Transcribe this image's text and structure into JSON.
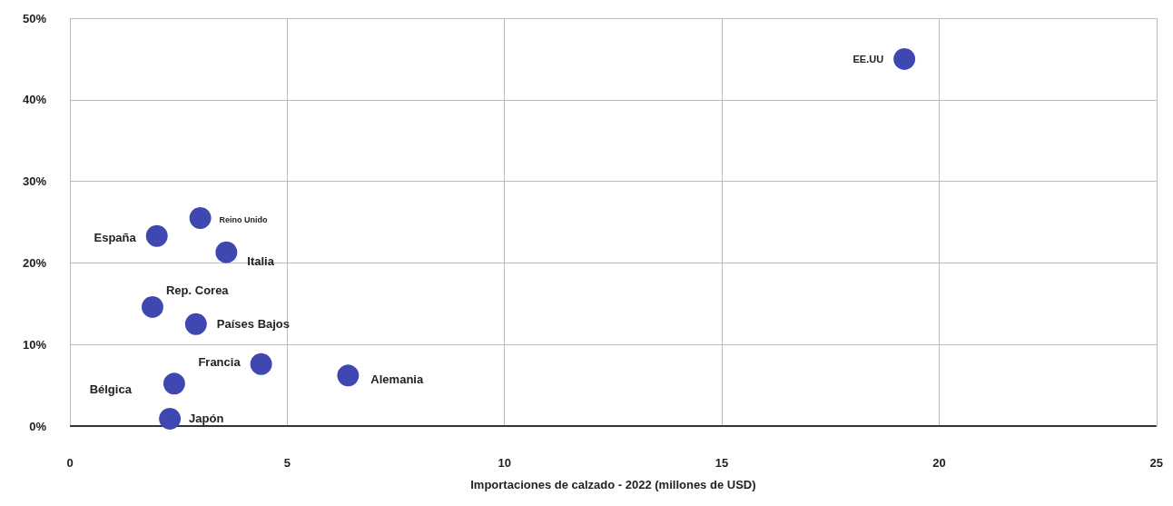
{
  "chart_data": {
    "type": "scatter",
    "xlabel": "Importaciones de calzado - 2022 (millones de USD)",
    "xlim": [
      0,
      25
    ],
    "xticks": [
      0,
      5,
      10,
      15,
      20,
      25
    ],
    "ylim": [
      0,
      50
    ],
    "yticks": [
      {
        "value": 0,
        "label": "0%"
      },
      {
        "value": 10,
        "label": "10%"
      },
      {
        "value": 20,
        "label": "20%"
      },
      {
        "value": 30,
        "label": "30%"
      },
      {
        "value": 40,
        "label": "40%"
      },
      {
        "value": 50,
        "label": "50%"
      }
    ],
    "grid": true,
    "marker": "circle",
    "series": [
      {
        "name": "EE.UU",
        "color": "#3f48b0",
        "x": [
          19.2
        ],
        "values": [
          45.0
        ]
      },
      {
        "name": "Reino Unido",
        "color": "#3f48b0",
        "x": [
          3.0
        ],
        "values": [
          25.5
        ]
      },
      {
        "name": "España",
        "color": "#3f48b0",
        "x": [
          2.0
        ],
        "values": [
          23.3
        ]
      },
      {
        "name": "Italia",
        "color": "#3f48b0",
        "x": [
          3.6
        ],
        "values": [
          21.3
        ]
      },
      {
        "name": "Rep. Corea",
        "color": "#3f48b0",
        "x": [
          1.9
        ],
        "values": [
          14.6
        ]
      },
      {
        "name": "Países Bajos",
        "color": "#3f48b0",
        "x": [
          2.9
        ],
        "values": [
          12.5
        ]
      },
      {
        "name": "Francia",
        "color": "#3f48b0",
        "x": [
          4.4
        ],
        "values": [
          7.6
        ]
      },
      {
        "name": "Alemania",
        "color": "#3f48b0",
        "x": [
          6.4
        ],
        "values": [
          6.2
        ]
      },
      {
        "name": "Bélgica",
        "color": "#3f48b0",
        "x": [
          2.4
        ],
        "values": [
          5.2
        ]
      },
      {
        "name": "Japón",
        "color": "#3f48b0",
        "x": [
          2.3
        ],
        "values": [
          0.9
        ]
      }
    ]
  }
}
